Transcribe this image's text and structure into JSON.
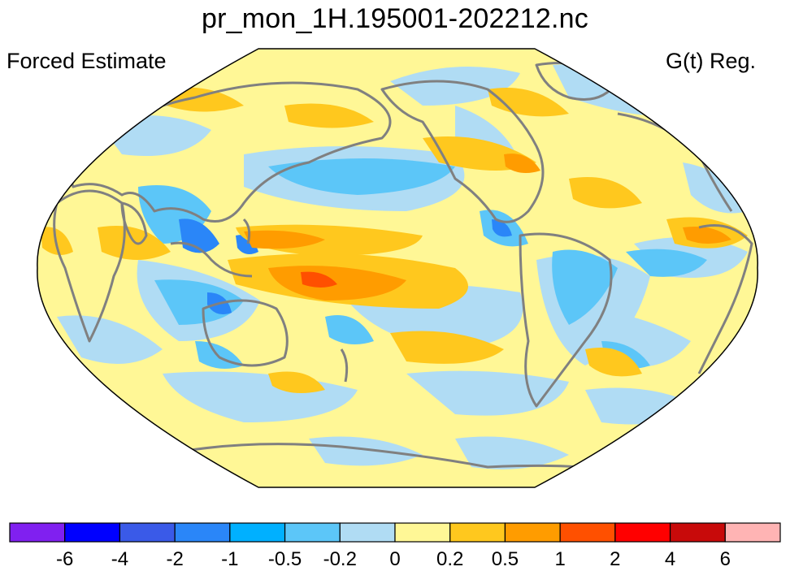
{
  "header": {
    "title": "pr_mon_1H.195001-202212.nc",
    "left_label": "Forced Estimate",
    "right_label": "G(t) Reg."
  },
  "colors": {
    "background_field": "#fff796",
    "coastline": "#808080",
    "outline": "#000000"
  },
  "colorbar": {
    "bins": [
      "#8020f0",
      "#0000ff",
      "#3a5ae8",
      "#2a86f8",
      "#00b0ff",
      "#5cc6f8",
      "#b0dcf4",
      "#fff796",
      "#ffc81e",
      "#ff9c00",
      "#ff5000",
      "#ff0000",
      "#c80a0a",
      "#ffb4b4"
    ],
    "labels": [
      "-6",
      "-4",
      "-2",
      "-1",
      "-0.5",
      "-0.2",
      "0",
      "0.2",
      "0.5",
      "1",
      "2",
      "4",
      "6"
    ]
  }
}
